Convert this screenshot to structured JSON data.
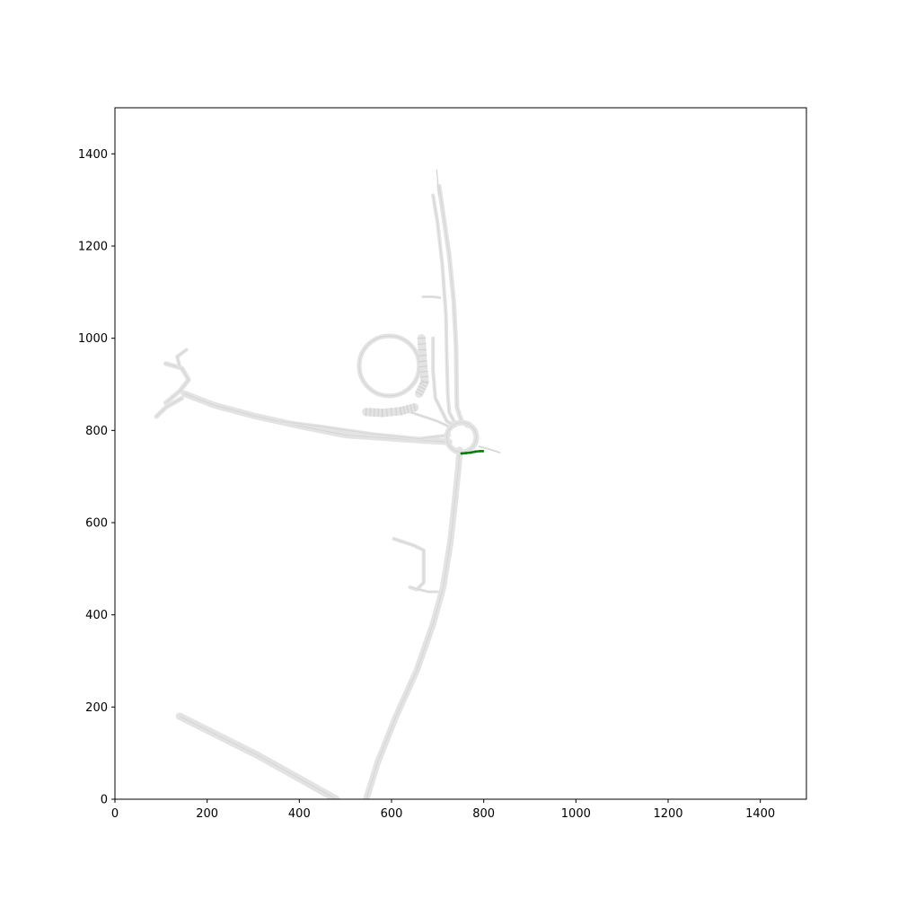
{
  "chart_data": {
    "type": "scatter",
    "title": "",
    "xlabel": "",
    "ylabel": "",
    "xlim": [
      0,
      1500
    ],
    "ylim": [
      0,
      1500
    ],
    "xticks": [
      0,
      200,
      400,
      600,
      800,
      1000,
      1200,
      1400
    ],
    "yticks": [
      0,
      200,
      400,
      600,
      800,
      1000,
      1200,
      1400
    ],
    "grid": false,
    "colors": {
      "road": "#e3e3e3",
      "road_edge": "#d2d2d2",
      "trajectory": "#008000",
      "axis": "#000000"
    },
    "map_roads": [
      {
        "name": "north-road",
        "width": 10,
        "points": [
          [
            703,
            1330
          ],
          [
            712,
            1270
          ],
          [
            725,
            1180
          ],
          [
            735,
            1080
          ],
          [
            740,
            980
          ],
          [
            741,
            900
          ],
          [
            742,
            850
          ],
          [
            752,
            820
          ],
          [
            765,
            810
          ]
        ]
      },
      {
        "name": "north-road-inner",
        "width": 8,
        "points": [
          [
            690,
            1310
          ],
          [
            700,
            1250
          ],
          [
            710,
            1160
          ],
          [
            718,
            1050
          ],
          [
            720,
            950
          ],
          [
            722,
            880
          ],
          [
            725,
            840
          ],
          [
            738,
            815
          ]
        ]
      },
      {
        "name": "south-road",
        "width": 14,
        "points": [
          [
            748,
            758
          ],
          [
            745,
            720
          ],
          [
            738,
            650
          ],
          [
            728,
            560
          ],
          [
            712,
            460
          ],
          [
            690,
            380
          ],
          [
            655,
            280
          ],
          [
            610,
            180
          ],
          [
            570,
            80
          ],
          [
            545,
            0
          ]
        ]
      },
      {
        "name": "west-road",
        "width": 14,
        "points": [
          [
            150,
            880
          ],
          [
            215,
            855
          ],
          [
            300,
            832
          ],
          [
            400,
            810
          ],
          [
            500,
            790
          ],
          [
            600,
            783
          ],
          [
            670,
            778
          ],
          [
            725,
            775
          ]
        ]
      },
      {
        "name": "west-road-ramp",
        "width": 8,
        "points": [
          [
            360,
            820
          ],
          [
            450,
            808
          ],
          [
            560,
            792
          ],
          [
            660,
            782
          ],
          [
            725,
            790
          ]
        ]
      },
      {
        "name": "west-branch-a",
        "width": 10,
        "points": [
          [
            110,
            860
          ],
          [
            140,
            885
          ],
          [
            160,
            910
          ],
          [
            145,
            935
          ],
          [
            110,
            945
          ]
        ]
      },
      {
        "name": "west-branch-b",
        "width": 10,
        "points": [
          [
            90,
            830
          ],
          [
            110,
            850
          ],
          [
            145,
            870
          ]
        ]
      },
      {
        "name": "west-branch-c",
        "width": 8,
        "points": [
          [
            140,
            940
          ],
          [
            135,
            960
          ],
          [
            155,
            975
          ]
        ]
      },
      {
        "name": "connector-ne",
        "width": 8,
        "points": [
          [
            690,
            1000
          ],
          [
            690,
            930
          ],
          [
            695,
            870
          ],
          [
            720,
            820
          ],
          [
            738,
            810
          ]
        ]
      },
      {
        "name": "connector-mid",
        "width": 6,
        "points": [
          [
            640,
            840
          ],
          [
            670,
            830
          ],
          [
            700,
            820
          ],
          [
            725,
            808
          ]
        ]
      },
      {
        "name": "spur-top",
        "width": 6,
        "points": [
          [
            668,
            1090
          ],
          [
            690,
            1090
          ],
          [
            705,
            1088
          ]
        ]
      },
      {
        "name": "side-road",
        "width": 8,
        "points": [
          [
            605,
            565
          ],
          [
            650,
            550
          ],
          [
            670,
            540
          ],
          [
            670,
            470
          ],
          [
            655,
            455
          ],
          [
            640,
            460
          ]
        ]
      },
      {
        "name": "side-road-link",
        "width": 6,
        "points": [
          [
            640,
            460
          ],
          [
            680,
            450
          ],
          [
            700,
            450
          ]
        ]
      },
      {
        "name": "southwest-road",
        "width": 16,
        "points": [
          [
            140,
            180
          ],
          [
            220,
            140
          ],
          [
            310,
            95
          ],
          [
            400,
            45
          ],
          [
            480,
            0
          ]
        ]
      },
      {
        "name": "east-stub",
        "width": 4,
        "points": [
          [
            790,
            765
          ],
          [
            810,
            760
          ],
          [
            835,
            752
          ]
        ]
      },
      {
        "name": "top-stub",
        "width": 3,
        "points": [
          [
            702,
            1310
          ],
          [
            700,
            1345
          ],
          [
            698,
            1365
          ]
        ]
      }
    ],
    "map_circles": [
      {
        "name": "parking-ring",
        "cx": 595,
        "cy": 940,
        "r": 65,
        "width": 10
      },
      {
        "name": "roundabout",
        "cx": 752,
        "cy": 785,
        "r": 32,
        "width": 12
      }
    ],
    "parking_bays": [
      {
        "name": "bays-east",
        "points": [
          [
            665,
            1000
          ],
          [
            668,
            950
          ],
          [
            672,
            905
          ],
          [
            660,
            880
          ]
        ]
      },
      {
        "name": "bays-south",
        "points": [
          [
            545,
            840
          ],
          [
            580,
            838
          ],
          [
            620,
            842
          ],
          [
            650,
            850
          ]
        ]
      }
    ],
    "trajectory": {
      "name": "ego-vehicle-path",
      "points": [
        [
          752,
          750
        ],
        [
          762,
          751
        ],
        [
          772,
          752
        ],
        [
          782,
          754
        ],
        [
          792,
          755
        ],
        [
          798,
          755
        ]
      ]
    }
  }
}
